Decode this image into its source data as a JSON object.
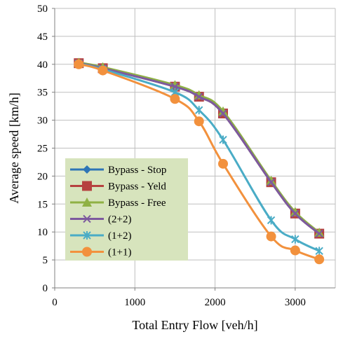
{
  "chart_data": {
    "type": "line",
    "title": "",
    "xlabel": "Total Entry Flow [veh/h]",
    "ylabel": "Average speed [km/h]",
    "xlim": [
      0,
      3500
    ],
    "ylim": [
      0,
      50
    ],
    "xticks": [
      0,
      1000,
      2000,
      3000
    ],
    "yticks": [
      0,
      5,
      10,
      15,
      20,
      25,
      30,
      35,
      40,
      45,
      50
    ],
    "grid": true,
    "legend_position": "left",
    "legend_background": "#d7e4bd",
    "x": [
      300,
      600,
      1500,
      1800,
      2100,
      2700,
      3000,
      3300
    ],
    "series": [
      {
        "name": "Bypass - Stop",
        "color": "#2e75b6",
        "marker": "diamond",
        "values": [
          40.2,
          39.3,
          36.0,
          34.2,
          31.2,
          18.9,
          13.3,
          9.7
        ]
      },
      {
        "name": "Bypass - Yeld",
        "color": "#b6413f",
        "marker": "square",
        "values": [
          40.2,
          39.3,
          36.0,
          34.2,
          31.2,
          18.9,
          13.3,
          9.7
        ]
      },
      {
        "name": "Bypass - Free",
        "color": "#8fb144",
        "marker": "triangle",
        "values": [
          40.3,
          39.5,
          36.3,
          34.5,
          31.6,
          19.2,
          13.6,
          9.9
        ]
      },
      {
        "name": "(2+2)",
        "color": "#7d5a9e",
        "marker": "x",
        "values": [
          40.2,
          39.3,
          36.0,
          34.2,
          31.2,
          18.9,
          13.3,
          9.7
        ]
      },
      {
        "name": "(1+2)",
        "color": "#4aacc6",
        "marker": "asterisk",
        "values": [
          40.1,
          39.1,
          35.0,
          31.8,
          26.5,
          12.1,
          8.7,
          6.6
        ]
      },
      {
        "name": "(1+1)",
        "color": "#f2913d",
        "marker": "circle",
        "values": [
          40.0,
          38.9,
          33.8,
          29.8,
          22.2,
          9.2,
          6.7,
          5.1
        ]
      }
    ]
  }
}
